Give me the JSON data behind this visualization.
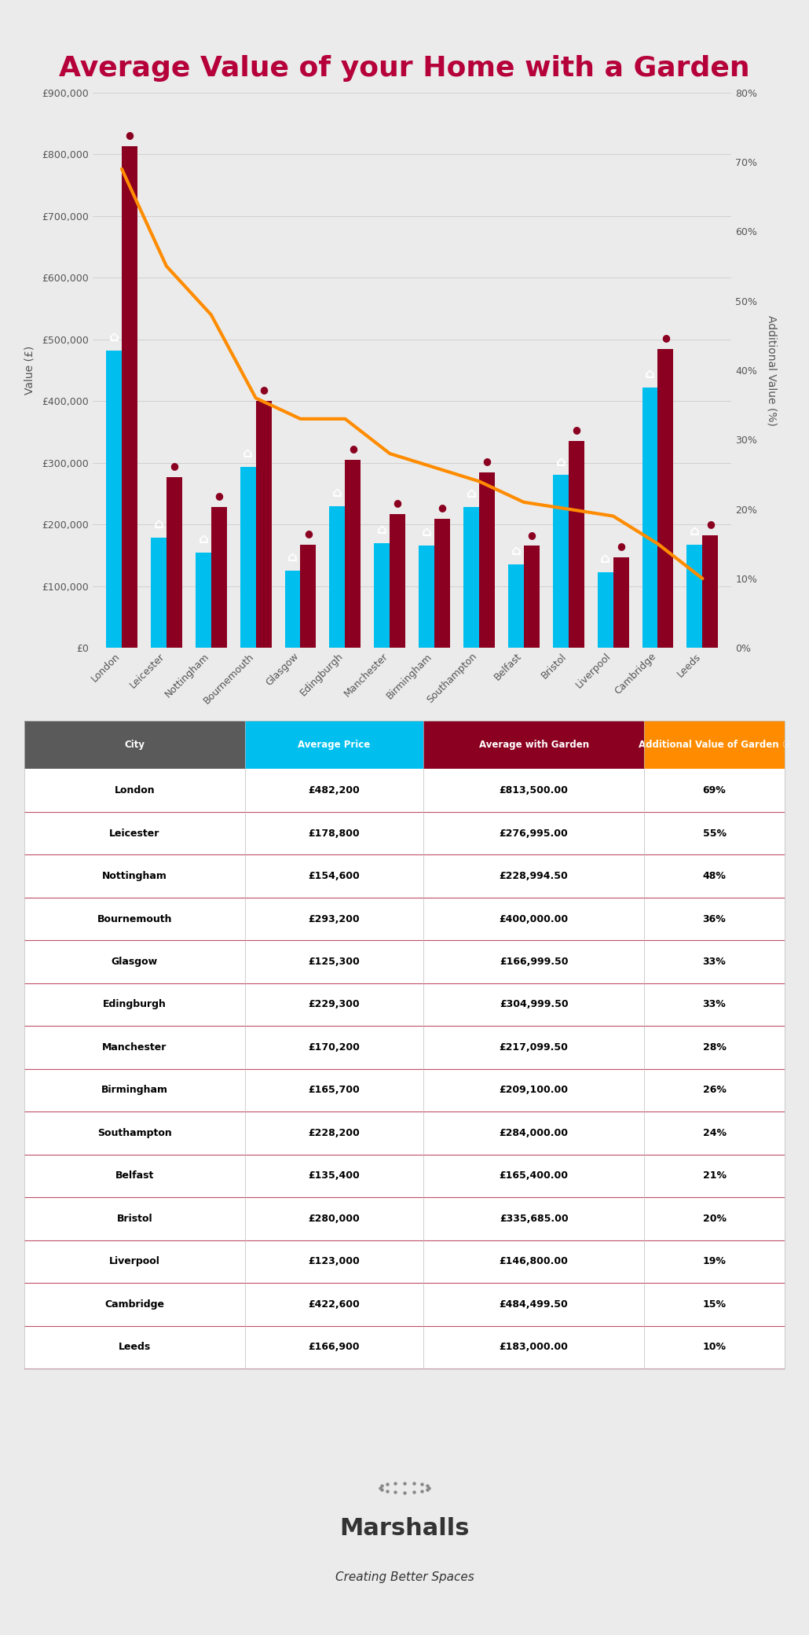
{
  "title": "Average Value of your Home with a Garden",
  "bg_color": "#EBEBEB",
  "title_color": "#B5003A",
  "cities": [
    "London",
    "Leicester",
    "Nottingham",
    "Bournemouth",
    "Glasgow",
    "Edingburgh",
    "Manchester",
    "Birmingham",
    "Southampton",
    "Belfast",
    "Bristol",
    "Liverpool",
    "Cambridge",
    "Leeds"
  ],
  "avg_value": [
    482200,
    178800,
    154600,
    293200,
    125300,
    229300,
    170200,
    165700,
    228200,
    135400,
    280000,
    123000,
    422600,
    166900
  ],
  "avg_with_garden": [
    813500,
    276995,
    228994.5,
    400000,
    166999.5,
    304999.5,
    217099.5,
    209100,
    284000,
    165400,
    335685,
    146800,
    484499.5,
    183000
  ],
  "additional_pct": [
    69,
    55,
    48,
    36,
    33,
    33,
    28,
    26,
    24,
    21,
    20,
    19,
    15,
    10
  ],
  "avg_price_display": [
    "£482,200",
    "£178,800",
    "£154,600",
    "£293,200",
    "£125,300",
    "£229,300",
    "£170,200",
    "£165,700",
    "£228,200",
    "£135,400",
    "£280,000",
    "£123,000",
    "£422,600",
    "£166,900"
  ],
  "avg_garden_display": [
    "£813,500.00",
    "£276,995.00",
    "£228,994.50",
    "£400,000.00",
    "£166,999.50",
    "£304,999.50",
    "£217,099.50",
    "£209,100.00",
    "£284,000.00",
    "£165,400.00",
    "£335,685.00",
    "£146,800.00",
    "£484,499.50",
    "£183,000.00"
  ],
  "bar_color_blue": "#00BFEF",
  "bar_color_dark": "#8B0020",
  "line_color": "#FF8C00",
  "table_header_city_color": "#5A5A5A",
  "table_header_avg_color": "#00BFEF",
  "table_header_garden_color": "#8B0020",
  "table_header_add_color": "#FF8C00",
  "marshalls_color": "#333333",
  "separator_color": "#C0506A",
  "grid_color": "#CCCCCC",
  "tick_color": "#555555"
}
